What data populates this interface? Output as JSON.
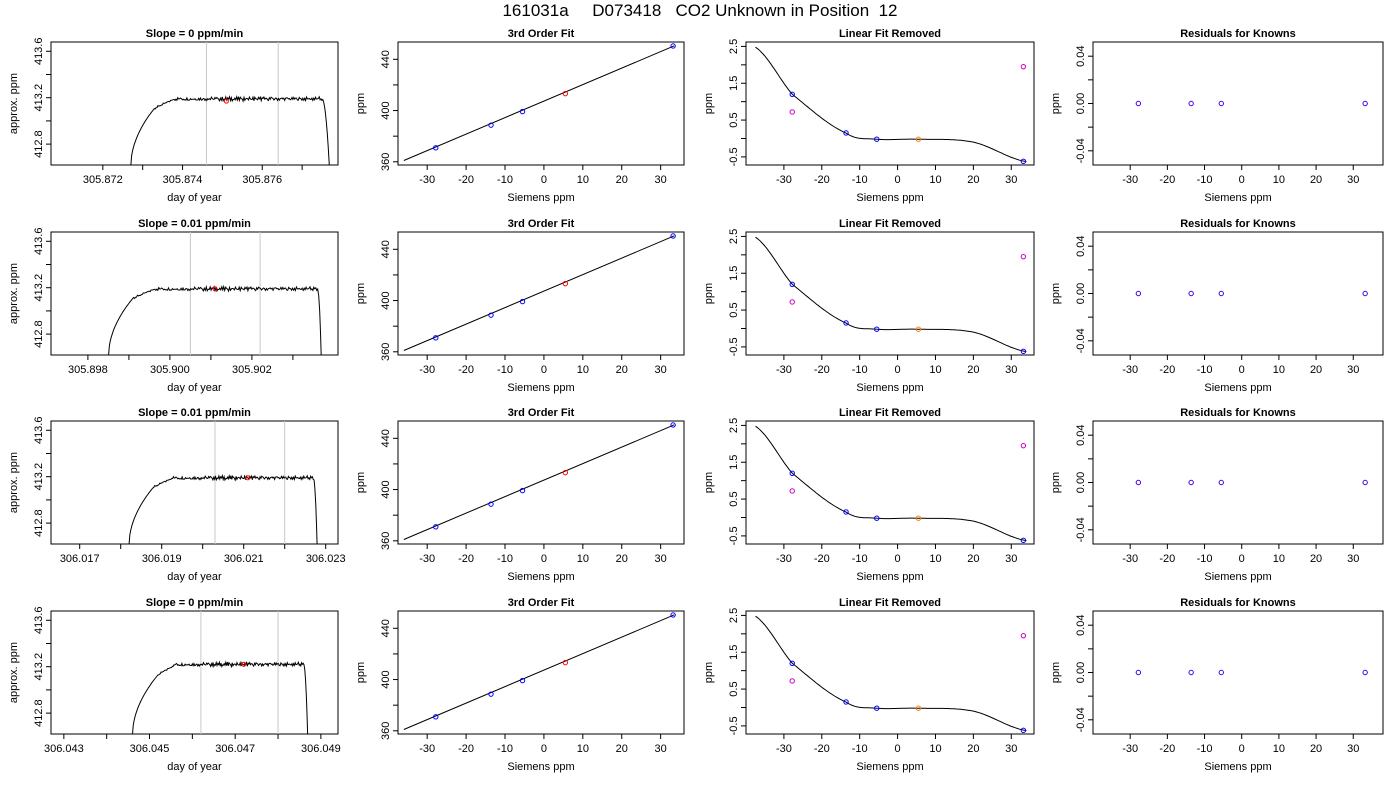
{
  "figure": {
    "title": "161031a     D073418   CO2 Unknown in Position  12"
  },
  "chart_data": [
    {
      "type": "line",
      "title": "Slope =  0  ppm/min",
      "xlabel": "day of year",
      "ylabel": "approx. ppm",
      "xlim": [
        305.8707,
        305.8779
      ],
      "ylim": [
        412.62,
        413.68
      ],
      "xticks": [
        "305.872",
        "305.874",
        "305.876"
      ],
      "xtick_values": [
        305.872,
        305.874,
        305.876
      ],
      "xminor": [
        305.873,
        305.875,
        305.877
      ],
      "yticks": [
        "412.8",
        "413.2",
        "413.6"
      ],
      "ytick_values": [
        412.8,
        413.2,
        413.6
      ],
      "yminor": [
        413.0,
        413.4
      ],
      "vlines": [
        305.8746,
        305.8764
      ],
      "trace": {
        "start": 305.8727,
        "rise_end": 305.8733,
        "fall_start": 305.8775,
        "end": 305.8777,
        "plateau": 413.19,
        "base": 412.6,
        "shoulder": 413.11
      },
      "highlight": {
        "x": 305.8751,
        "y": 413.17
      }
    },
    {
      "type": "scatter",
      "title": "3rd Order Fit",
      "xlabel": "Siemens ppm",
      "ylabel": "ppm",
      "xlim": [
        -37.5,
        36
      ],
      "ylim": [
        357.5,
        453.5
      ],
      "xticks": [
        "-30",
        "-20",
        "-10",
        "0",
        "10",
        "20",
        "30"
      ],
      "xtick_values": [
        -30,
        -20,
        -10,
        0,
        10,
        20,
        30
      ],
      "yticks": [
        "360",
        "400",
        "440"
      ],
      "ytick_values": [
        360,
        400,
        440
      ],
      "yminor": [
        380,
        420
      ],
      "curve": {
        "from": -36,
        "to": 33.5,
        "y_from": 361,
        "y_to": 450.5
      },
      "points": [
        {
          "x": -27.8,
          "y": 370.9,
          "color": "#0000ff"
        },
        {
          "x": -13.6,
          "y": 388.6,
          "color": "#0000ff"
        },
        {
          "x": -5.5,
          "y": 399.2,
          "color": "#0000ff"
        },
        {
          "x": 5.5,
          "y": 413.2,
          "color": "#ff0000"
        },
        {
          "x": 33.2,
          "y": 450.4,
          "color": "#0000ff"
        }
      ]
    },
    {
      "type": "scatter",
      "title": "Linear Fit Removed",
      "xlabel": "Siemens ppm",
      "ylabel": "ppm",
      "xlim": [
        -40,
        36
      ],
      "ylim": [
        -0.72,
        2.62
      ],
      "xticks": [
        "-30",
        "-20",
        "-10",
        "0",
        "10",
        "20",
        "30"
      ],
      "xtick_values": [
        -30,
        -20,
        -10,
        0,
        10,
        20,
        30
      ],
      "yticks": [
        "-0.5",
        "0.5",
        "1.5",
        "2.5"
      ],
      "ytick_values": [
        -0.5,
        0.5,
        1.5,
        2.5
      ],
      "yminor": [
        0,
        1,
        2
      ],
      "curve": {
        "from": -37.5,
        "to": 34
      },
      "points": [
        {
          "x": -27.8,
          "y": 1.2,
          "color": "#0000ff"
        },
        {
          "x": -13.6,
          "y": 0.15,
          "color": "#0000ff"
        },
        {
          "x": -5.5,
          "y": -0.02,
          "color": "#0000ff"
        },
        {
          "x": 5.5,
          "y": -0.02,
          "color": "#ff8000"
        },
        {
          "x": 33.2,
          "y": -0.62,
          "color": "#0000ff"
        },
        {
          "x": -27.8,
          "y": 0.72,
          "color": "#cc00cc"
        },
        {
          "x": 33.2,
          "y": 1.95,
          "color": "#cc00cc"
        }
      ]
    },
    {
      "type": "scatter",
      "title": "Residuals for Knowns",
      "xlabel": "Siemens ppm",
      "ylabel": "ppm",
      "xlim": [
        -40,
        38
      ],
      "ylim": [
        -0.052,
        0.052
      ],
      "xticks": [
        "-30",
        "-20",
        "-10",
        "0",
        "10",
        "20",
        "30"
      ],
      "xtick_values": [
        -30,
        -20,
        -10,
        0,
        10,
        20,
        30
      ],
      "yticks": [
        "-0.04",
        "0.00",
        "0.04"
      ],
      "ytick_values": [
        -0.04,
        0,
        0.04
      ],
      "yminor": [
        -0.02,
        0.02
      ],
      "points": [
        {
          "x": -27.8,
          "y": 0,
          "color": "#4400ee"
        },
        {
          "x": -13.6,
          "y": 0,
          "color": "#4400ee"
        },
        {
          "x": -5.5,
          "y": 0,
          "color": "#4400ee"
        },
        {
          "x": 33.2,
          "y": 0,
          "color": "#4400ee"
        }
      ]
    },
    {
      "type": "line",
      "title": "Slope =  0.01  ppm/min",
      "xlabel": "day of year",
      "ylabel": "approx. ppm",
      "xlim": [
        305.8971,
        305.9041
      ],
      "ylim": [
        412.62,
        413.68
      ],
      "xticks": [
        "305.898",
        "305.900",
        "305.902"
      ],
      "xtick_values": [
        305.898,
        305.9,
        305.902
      ],
      "xminor": [
        305.899,
        305.901,
        305.903
      ],
      "yticks": [
        "412.8",
        "413.2",
        "413.6"
      ],
      "ytick_values": [
        412.8,
        413.2,
        413.6
      ],
      "yminor": [
        413.0,
        413.4
      ],
      "vlines": [
        305.9005,
        305.9022
      ],
      "trace": {
        "start": 305.8985,
        "rise_end": 305.8991,
        "fall_start": 305.9036,
        "end": 305.9037,
        "plateau": 413.19,
        "base": 412.6,
        "shoulder": 413.11
      },
      "highlight": {
        "x": 305.9011,
        "y": 413.19
      }
    },
    {
      "type": "scatter",
      "title": "3rd Order Fit",
      "xlabel": "Siemens ppm",
      "ylabel": "ppm",
      "xlim": [
        -37.5,
        36
      ],
      "ylim": [
        357.5,
        453.5
      ],
      "xticks": [
        "-30",
        "-20",
        "-10",
        "0",
        "10",
        "20",
        "30"
      ],
      "xtick_values": [
        -30,
        -20,
        -10,
        0,
        10,
        20,
        30
      ],
      "yticks": [
        "360",
        "400",
        "440"
      ],
      "ytick_values": [
        360,
        400,
        440
      ],
      "yminor": [
        380,
        420
      ],
      "curve": {
        "from": -36,
        "to": 33.5,
        "y_from": 361,
        "y_to": 450.5
      },
      "points": [
        {
          "x": -27.8,
          "y": 370.9,
          "color": "#0000ff"
        },
        {
          "x": -13.6,
          "y": 388.6,
          "color": "#0000ff"
        },
        {
          "x": -5.5,
          "y": 399.2,
          "color": "#0000ff"
        },
        {
          "x": 5.5,
          "y": 413.2,
          "color": "#ff0000"
        },
        {
          "x": 33.2,
          "y": 450.4,
          "color": "#0000ff"
        }
      ]
    },
    {
      "type": "scatter",
      "title": "Linear Fit Removed",
      "xlabel": "Siemens ppm",
      "ylabel": "ppm",
      "xlim": [
        -40,
        36
      ],
      "ylim": [
        -0.72,
        2.62
      ],
      "xticks": [
        "-30",
        "-20",
        "-10",
        "0",
        "10",
        "20",
        "30"
      ],
      "xtick_values": [
        -30,
        -20,
        -10,
        0,
        10,
        20,
        30
      ],
      "yticks": [
        "-0.5",
        "0.5",
        "1.5",
        "2.5"
      ],
      "ytick_values": [
        -0.5,
        0.5,
        1.5,
        2.5
      ],
      "yminor": [
        0,
        1,
        2
      ],
      "curve": {
        "from": -37.5,
        "to": 34
      },
      "points": [
        {
          "x": -27.8,
          "y": 1.2,
          "color": "#0000ff"
        },
        {
          "x": -13.6,
          "y": 0.15,
          "color": "#0000ff"
        },
        {
          "x": -5.5,
          "y": -0.02,
          "color": "#0000ff"
        },
        {
          "x": 5.5,
          "y": -0.02,
          "color": "#ff8000"
        },
        {
          "x": 33.2,
          "y": -0.62,
          "color": "#0000ff"
        },
        {
          "x": -27.8,
          "y": 0.72,
          "color": "#cc00cc"
        },
        {
          "x": 33.2,
          "y": 1.95,
          "color": "#cc00cc"
        }
      ]
    },
    {
      "type": "scatter",
      "title": "Residuals for Knowns",
      "xlabel": "Siemens ppm",
      "ylabel": "ppm",
      "xlim": [
        -40,
        38
      ],
      "ylim": [
        -0.052,
        0.052
      ],
      "xticks": [
        "-30",
        "-20",
        "-10",
        "0",
        "10",
        "20",
        "30"
      ],
      "xtick_values": [
        -30,
        -20,
        -10,
        0,
        10,
        20,
        30
      ],
      "yticks": [
        "-0.04",
        "0.00",
        "0.04"
      ],
      "ytick_values": [
        -0.04,
        0,
        0.04
      ],
      "yminor": [
        -0.02,
        0.02
      ],
      "points": [
        {
          "x": -27.8,
          "y": 0,
          "color": "#4400ee"
        },
        {
          "x": -13.6,
          "y": 0,
          "color": "#4400ee"
        },
        {
          "x": -5.5,
          "y": 0,
          "color": "#4400ee"
        },
        {
          "x": 33.2,
          "y": 0,
          "color": "#4400ee"
        }
      ]
    },
    {
      "type": "line",
      "title": "Slope =  0.01  ppm/min",
      "xlabel": "day of year",
      "ylabel": "approx. ppm",
      "xlim": [
        306.0163,
        306.0233
      ],
      "ylim": [
        412.62,
        413.68
      ],
      "xticks": [
        "306.017",
        "306.019",
        "306.021",
        "306.023"
      ],
      "xtick_values": [
        306.017,
        306.019,
        306.021,
        306.023
      ],
      "xminor": [
        306.018,
        306.02,
        306.022
      ],
      "yticks": [
        "412.8",
        "413.2",
        "413.6"
      ],
      "ytick_values": [
        412.8,
        413.2,
        413.6
      ],
      "yminor": [
        413.0,
        413.4
      ],
      "vlines": [
        306.0203,
        306.022
      ],
      "trace": {
        "start": 306.0182,
        "rise_end": 306.0188,
        "fall_start": 306.0227,
        "end": 306.0228,
        "plateau": 413.19,
        "base": 412.6,
        "shoulder": 413.11
      },
      "highlight": {
        "x": 306.0211,
        "y": 413.19
      }
    },
    {
      "type": "scatter",
      "title": "3rd Order Fit",
      "xlabel": "Siemens ppm",
      "ylabel": "ppm",
      "xlim": [
        -37.5,
        36
      ],
      "ylim": [
        357.5,
        453.5
      ],
      "xticks": [
        "-30",
        "-20",
        "-10",
        "0",
        "10",
        "20",
        "30"
      ],
      "xtick_values": [
        -30,
        -20,
        -10,
        0,
        10,
        20,
        30
      ],
      "yticks": [
        "360",
        "400",
        "440"
      ],
      "ytick_values": [
        360,
        400,
        440
      ],
      "yminor": [
        380,
        420
      ],
      "curve": {
        "from": -36,
        "to": 33.5,
        "y_from": 361,
        "y_to": 450.5
      },
      "points": [
        {
          "x": -27.8,
          "y": 370.9,
          "color": "#0000ff"
        },
        {
          "x": -13.6,
          "y": 388.6,
          "color": "#0000ff"
        },
        {
          "x": -5.5,
          "y": 399.2,
          "color": "#0000ff"
        },
        {
          "x": 5.5,
          "y": 413.2,
          "color": "#ff0000"
        },
        {
          "x": 33.2,
          "y": 450.4,
          "color": "#0000ff"
        }
      ]
    },
    {
      "type": "scatter",
      "title": "Linear Fit Removed",
      "xlabel": "Siemens ppm",
      "ylabel": "ppm",
      "xlim": [
        -40,
        36
      ],
      "ylim": [
        -0.72,
        2.62
      ],
      "xticks": [
        "-30",
        "-20",
        "-10",
        "0",
        "10",
        "20",
        "30"
      ],
      "xtick_values": [
        -30,
        -20,
        -10,
        0,
        10,
        20,
        30
      ],
      "yticks": [
        "-0.5",
        "0.5",
        "1.5",
        "2.5"
      ],
      "ytick_values": [
        -0.5,
        0.5,
        1.5,
        2.5
      ],
      "yminor": [
        0,
        1,
        2
      ],
      "curve": {
        "from": -37.5,
        "to": 34
      },
      "points": [
        {
          "x": -27.8,
          "y": 1.2,
          "color": "#0000ff"
        },
        {
          "x": -13.6,
          "y": 0.15,
          "color": "#0000ff"
        },
        {
          "x": -5.5,
          "y": -0.02,
          "color": "#0000ff"
        },
        {
          "x": 5.5,
          "y": -0.02,
          "color": "#ff8000"
        },
        {
          "x": 33.2,
          "y": -0.62,
          "color": "#0000ff"
        },
        {
          "x": -27.8,
          "y": 0.72,
          "color": "#cc00cc"
        },
        {
          "x": 33.2,
          "y": 1.95,
          "color": "#cc00cc"
        }
      ]
    },
    {
      "type": "scatter",
      "title": "Residuals for Knowns",
      "xlabel": "Siemens ppm",
      "ylabel": "ppm",
      "xlim": [
        -40,
        38
      ],
      "ylim": [
        -0.052,
        0.052
      ],
      "xticks": [
        "-30",
        "-20",
        "-10",
        "0",
        "10",
        "20",
        "30"
      ],
      "xtick_values": [
        -30,
        -20,
        -10,
        0,
        10,
        20,
        30
      ],
      "yticks": [
        "-0.04",
        "0.00",
        "0.04"
      ],
      "ytick_values": [
        -0.04,
        0,
        0.04
      ],
      "yminor": [
        -0.02,
        0.02
      ],
      "points": [
        {
          "x": -27.8,
          "y": 0,
          "color": "#4400ee"
        },
        {
          "x": -13.6,
          "y": 0,
          "color": "#4400ee"
        },
        {
          "x": -5.5,
          "y": 0,
          "color": "#4400ee"
        },
        {
          "x": 33.2,
          "y": 0,
          "color": "#4400ee"
        }
      ]
    },
    {
      "type": "line",
      "title": "Slope =  0  ppm/min",
      "xlabel": "day of year",
      "ylabel": "approx. ppm",
      "xlim": [
        306.0427,
        306.0494
      ],
      "ylim": [
        412.62,
        413.68
      ],
      "xticks": [
        "306.043",
        "306.045",
        "306.047",
        "306.049"
      ],
      "xtick_values": [
        306.043,
        306.045,
        306.047,
        306.049
      ],
      "xminor": [
        306.044,
        306.046,
        306.048
      ],
      "yticks": [
        "412.8",
        "413.2",
        "413.6"
      ],
      "ytick_values": [
        412.8,
        413.2,
        413.6
      ],
      "yminor": [
        413.0,
        413.4
      ],
      "vlines": [
        306.0462,
        306.048
      ],
      "trace": {
        "start": 306.0446,
        "rise_end": 306.0452,
        "fall_start": 306.0486,
        "end": 306.0487,
        "plateau": 413.22,
        "base": 412.6,
        "shoulder": 413.13
      },
      "highlight": {
        "x": 306.0472,
        "y": 413.22
      }
    },
    {
      "type": "scatter",
      "title": "3rd Order Fit",
      "xlabel": "Siemens ppm",
      "ylabel": "ppm",
      "xlim": [
        -37.5,
        36
      ],
      "ylim": [
        357.5,
        453.5
      ],
      "xticks": [
        "-30",
        "-20",
        "-10",
        "0",
        "10",
        "20",
        "30"
      ],
      "xtick_values": [
        -30,
        -20,
        -10,
        0,
        10,
        20,
        30
      ],
      "yticks": [
        "360",
        "400",
        "440"
      ],
      "ytick_values": [
        360,
        400,
        440
      ],
      "yminor": [
        380,
        420
      ],
      "curve": {
        "from": -36,
        "to": 33.5,
        "y_from": 361,
        "y_to": 450.5
      },
      "points": [
        {
          "x": -27.8,
          "y": 370.9,
          "color": "#0000ff"
        },
        {
          "x": -13.6,
          "y": 388.6,
          "color": "#0000ff"
        },
        {
          "x": -5.5,
          "y": 399.2,
          "color": "#0000ff"
        },
        {
          "x": 5.5,
          "y": 413.2,
          "color": "#ff0000"
        },
        {
          "x": 33.2,
          "y": 450.4,
          "color": "#0000ff"
        }
      ]
    },
    {
      "type": "scatter",
      "title": "Linear Fit Removed",
      "xlabel": "Siemens ppm",
      "ylabel": "ppm",
      "xlim": [
        -40,
        36
      ],
      "ylim": [
        -0.72,
        2.62
      ],
      "xticks": [
        "-30",
        "-20",
        "-10",
        "0",
        "10",
        "20",
        "30"
      ],
      "xtick_values": [
        -30,
        -20,
        -10,
        0,
        10,
        20,
        30
      ],
      "yticks": [
        "-0.5",
        "0.5",
        "1.5",
        "2.5"
      ],
      "ytick_values": [
        -0.5,
        0.5,
        1.5,
        2.5
      ],
      "yminor": [
        0,
        1,
        2
      ],
      "curve": {
        "from": -37.5,
        "to": 34
      },
      "points": [
        {
          "x": -27.8,
          "y": 1.2,
          "color": "#0000ff"
        },
        {
          "x": -13.6,
          "y": 0.15,
          "color": "#0000ff"
        },
        {
          "x": -5.5,
          "y": -0.02,
          "color": "#0000ff"
        },
        {
          "x": 5.5,
          "y": -0.02,
          "color": "#ff8000"
        },
        {
          "x": 33.2,
          "y": -0.62,
          "color": "#0000ff"
        },
        {
          "x": -27.8,
          "y": 0.72,
          "color": "#cc00cc"
        },
        {
          "x": 33.2,
          "y": 1.95,
          "color": "#cc00cc"
        }
      ]
    },
    {
      "type": "scatter",
      "title": "Residuals for Knowns",
      "xlabel": "Siemens ppm",
      "ylabel": "ppm",
      "xlim": [
        -40,
        38
      ],
      "ylim": [
        -0.052,
        0.052
      ],
      "xticks": [
        "-30",
        "-20",
        "-10",
        "0",
        "10",
        "20",
        "30"
      ],
      "xtick_values": [
        -30,
        -20,
        -10,
        0,
        10,
        20,
        30
      ],
      "yticks": [
        "-0.04",
        "0.00",
        "0.04"
      ],
      "ytick_values": [
        -0.04,
        0,
        0.04
      ],
      "yminor": [
        -0.02,
        0.02
      ],
      "points": [
        {
          "x": -27.8,
          "y": 0,
          "color": "#4400ee"
        },
        {
          "x": -13.6,
          "y": 0,
          "color": "#4400ee"
        },
        {
          "x": -5.5,
          "y": 0,
          "color": "#4400ee"
        },
        {
          "x": 33.2,
          "y": 0,
          "color": "#4400ee"
        }
      ]
    }
  ]
}
